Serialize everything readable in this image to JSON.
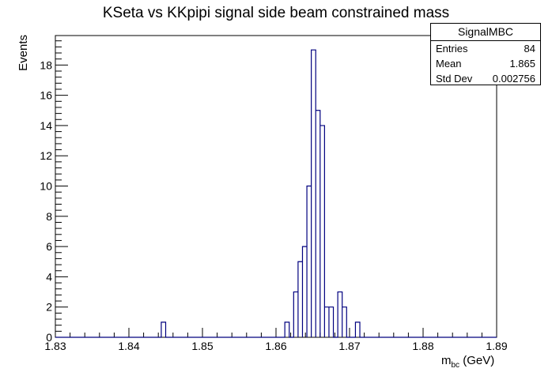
{
  "chart_data": {
    "type": "histogram",
    "title": "KSeta vs KKpipi signal side beam constrained mass",
    "xlabel_main": "m",
    "xlabel_sub": "bc",
    "xlabel_unit": " (GeV)",
    "ylabel": "Events",
    "xlim": [
      1.83,
      1.89
    ],
    "ylim": [
      0,
      19.95
    ],
    "bin_width": 0.0006,
    "xticks": [
      1.83,
      1.84,
      1.85,
      1.86,
      1.87,
      1.88,
      1.89
    ],
    "xtick_labels": [
      "1.83",
      "1.84",
      "1.85",
      "1.86",
      "1.87",
      "1.88",
      "1.89"
    ],
    "yticks": [
      0,
      2,
      4,
      6,
      8,
      10,
      12,
      14,
      16,
      18
    ],
    "ytick_labels": [
      "0",
      "2",
      "4",
      "6",
      "8",
      "10",
      "12",
      "14",
      "16",
      "18"
    ],
    "grid": false,
    "line_color": "#00007f",
    "bins": [
      {
        "x_low": 1.8444,
        "x_high": 1.845,
        "count": 1
      },
      {
        "x_low": 1.8612,
        "x_high": 1.8618,
        "count": 1
      },
      {
        "x_low": 1.8624,
        "x_high": 1.863,
        "count": 3
      },
      {
        "x_low": 1.863,
        "x_high": 1.8636,
        "count": 5
      },
      {
        "x_low": 1.8636,
        "x_high": 1.8642,
        "count": 6
      },
      {
        "x_low": 1.8642,
        "x_high": 1.8648,
        "count": 10
      },
      {
        "x_low": 1.8648,
        "x_high": 1.8654,
        "count": 19
      },
      {
        "x_low": 1.8654,
        "x_high": 1.866,
        "count": 15
      },
      {
        "x_low": 1.866,
        "x_high": 1.8666,
        "count": 14
      },
      {
        "x_low": 1.8666,
        "x_high": 1.8672,
        "count": 2
      },
      {
        "x_low": 1.8672,
        "x_high": 1.8678,
        "count": 2
      },
      {
        "x_low": 1.8684,
        "x_high": 1.869,
        "count": 3
      },
      {
        "x_low": 1.869,
        "x_high": 1.8696,
        "count": 2
      },
      {
        "x_low": 1.8708,
        "x_high": 1.8714,
        "count": 1
      }
    ]
  },
  "stats_box": {
    "name": "SignalMBC",
    "entries_label": "Entries",
    "entries_value": "84",
    "mean_label": "Mean",
    "mean_value": "1.865",
    "stddev_label": "Std Dev",
    "stddev_value": "0.002756"
  }
}
